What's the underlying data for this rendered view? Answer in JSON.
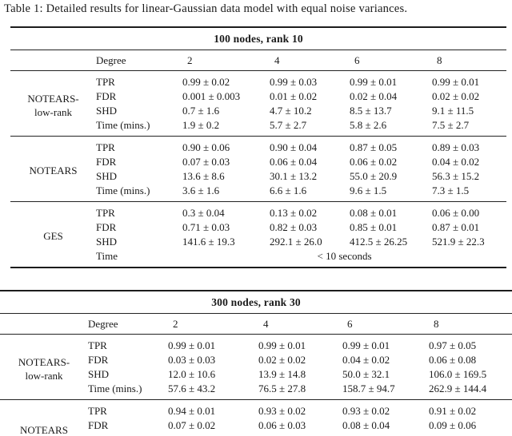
{
  "caption": "Table 1: Detailed results for linear-Gaussian data model with equal noise variances.",
  "tables": [
    {
      "title": "100 nodes, rank 10",
      "degree_label": "Degree",
      "degrees": [
        "2",
        "4",
        "6",
        "8"
      ],
      "blocks": [
        {
          "algorithm_lines": [
            "NOTEARS-",
            "low-rank"
          ],
          "truncated": false,
          "rows": [
            {
              "metric": "TPR",
              "values": [
                "0.99 ± 0.02",
                "0.99 ± 0.03",
                "0.99 ± 0.01",
                "0.99 ± 0.01"
              ]
            },
            {
              "metric": "FDR",
              "values": [
                "0.001 ± 0.003",
                "0.01 ± 0.02",
                "0.02 ± 0.04",
                "0.02 ± 0.02"
              ]
            },
            {
              "metric": "SHD",
              "values": [
                "0.7 ± 1.6",
                "4.7 ± 10.2",
                "8.5 ± 13.7",
                "9.1 ± 11.5"
              ]
            },
            {
              "metric": "Time (mins.)",
              "values": [
                "1.9 ± 0.2",
                "5.7 ± 2.7",
                "5.8 ± 2.6",
                "7.5 ± 2.7"
              ]
            }
          ]
        },
        {
          "algorithm_lines": [
            "NOTEARS"
          ],
          "truncated": false,
          "rows": [
            {
              "metric": "TPR",
              "values": [
                "0.90 ± 0.06",
                "0.90 ± 0.04",
                "0.87 ± 0.05",
                "0.89 ± 0.03"
              ]
            },
            {
              "metric": "FDR",
              "values": [
                "0.07 ± 0.03",
                "0.06 ± 0.04",
                "0.06 ± 0.02",
                "0.04 ± 0.02"
              ]
            },
            {
              "metric": "SHD",
              "values": [
                "13.6 ± 8.6",
                "30.1 ± 13.2",
                "55.0 ± 20.9",
                "56.3 ± 15.2"
              ]
            },
            {
              "metric": "Time (mins.)",
              "values": [
                "3.6 ± 1.6",
                "6.6 ± 1.6",
                "9.6 ± 1.5",
                "7.3 ± 1.5"
              ]
            }
          ]
        },
        {
          "algorithm_lines": [
            "GES"
          ],
          "truncated": false,
          "rows": [
            {
              "metric": "TPR",
              "values": [
                "0.3 ± 0.04",
                "0.13 ± 0.02",
                "0.08 ± 0.01",
                "0.06 ± 0.00"
              ]
            },
            {
              "metric": "FDR",
              "values": [
                "0.71 ± 0.03",
                "0.82 ± 0.03",
                "0.85 ± 0.01",
                "0.87 ± 0.01"
              ]
            },
            {
              "metric": "SHD",
              "values": [
                "141.6 ± 19.3",
                "292.1 ± 26.0",
                "412.5 ± 26.25",
                "521.9 ± 22.3"
              ]
            },
            {
              "metric": "Time",
              "span_value": "< 10 seconds"
            }
          ]
        }
      ]
    },
    {
      "title": "300 nodes, rank 30",
      "degree_label": "Degree",
      "degrees": [
        "2",
        "4",
        "6",
        "8"
      ],
      "blocks": [
        {
          "algorithm_lines": [
            "NOTEARS-",
            "low-rank"
          ],
          "truncated": false,
          "rows": [
            {
              "metric": "TPR",
              "values": [
                "0.99 ± 0.01",
                "0.99 ± 0.01",
                "0.99 ± 0.01",
                "0.97 ± 0.05"
              ]
            },
            {
              "metric": "FDR",
              "values": [
                "0.03 ± 0.03",
                "0.02 ± 0.02",
                "0.04 ± 0.02",
                "0.06 ± 0.08"
              ]
            },
            {
              "metric": "SHD",
              "values": [
                "12.0 ± 10.6",
                "13.9 ± 14.8",
                "50.0 ± 32.1",
                "106.0 ± 169.5"
              ]
            },
            {
              "metric": "Time (mins.)",
              "values": [
                "57.6 ± 43.2",
                "76.5 ± 27.8",
                "158.7 ± 94.7",
                "262.9 ± 144.4"
              ]
            }
          ]
        },
        {
          "algorithm_lines": [
            "NOTEARS"
          ],
          "truncated": true,
          "rows": [
            {
              "metric": "TPR",
              "values": [
                "0.94 ± 0.01",
                "0.93 ± 0.02",
                "0.93 ± 0.02",
                "0.91 ± 0.02"
              ]
            },
            {
              "metric": "FDR",
              "values": [
                "0.07 ± 0.02",
                "0.06 ± 0.03",
                "0.08 ± 0.04",
                "0.09 ± 0.06"
              ]
            }
          ]
        }
      ]
    }
  ],
  "layout": {
    "col_widths_table1": [
      107,
      108,
      109,
      100,
      103,
      93
    ],
    "col_widths_table2": [
      110,
      100,
      113,
      105,
      108,
      104
    ]
  }
}
